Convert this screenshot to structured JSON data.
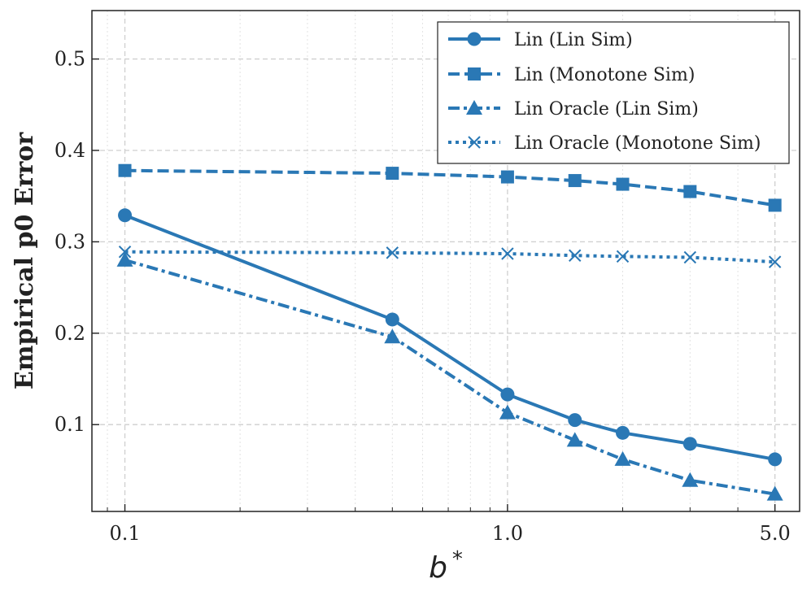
{
  "chart_data": {
    "type": "line",
    "xscale": "log",
    "x": [
      0.1,
      0.5,
      1.0,
      1.5,
      2.0,
      3.0,
      5.0
    ],
    "xlim": [
      0.082,
      5.8
    ],
    "ylim": [
      0.005,
      0.553
    ],
    "xticks": [
      0.1,
      1.0,
      5.0
    ],
    "xtick_labels": [
      "0.1",
      "1.0",
      "5.0"
    ],
    "yticks": [
      0.1,
      0.2,
      0.3,
      0.4,
      0.5
    ],
    "ytick_labels": [
      "0.1",
      "0.2",
      "0.3",
      "0.4",
      "0.5"
    ],
    "xlabel": "b",
    "xlabel_sup": "*",
    "ylabel": "Empirical p0 Error",
    "grid": true,
    "legend_position": "top-right",
    "color": "#2a78b5",
    "series": [
      {
        "name": "Lin (Lin Sim)",
        "linestyle": "solid",
        "marker": "circle",
        "values": [
          0.329,
          0.215,
          0.133,
          0.105,
          0.091,
          0.079,
          0.062
        ]
      },
      {
        "name": "Lin (Monotone Sim)",
        "linestyle": "dashed",
        "marker": "square",
        "values": [
          0.378,
          0.375,
          0.371,
          0.367,
          0.363,
          0.355,
          0.34
        ]
      },
      {
        "name": "Lin Oracle (Lin Sim)",
        "linestyle": "dashdot",
        "marker": "triangle",
        "values": [
          0.28,
          0.196,
          0.113,
          0.083,
          0.062,
          0.039,
          0.024
        ]
      },
      {
        "name": "Lin Oracle (Monotone Sim)",
        "linestyle": "dotted",
        "marker": "x",
        "values": [
          0.289,
          0.288,
          0.287,
          0.285,
          0.284,
          0.283,
          0.278
        ]
      }
    ]
  }
}
